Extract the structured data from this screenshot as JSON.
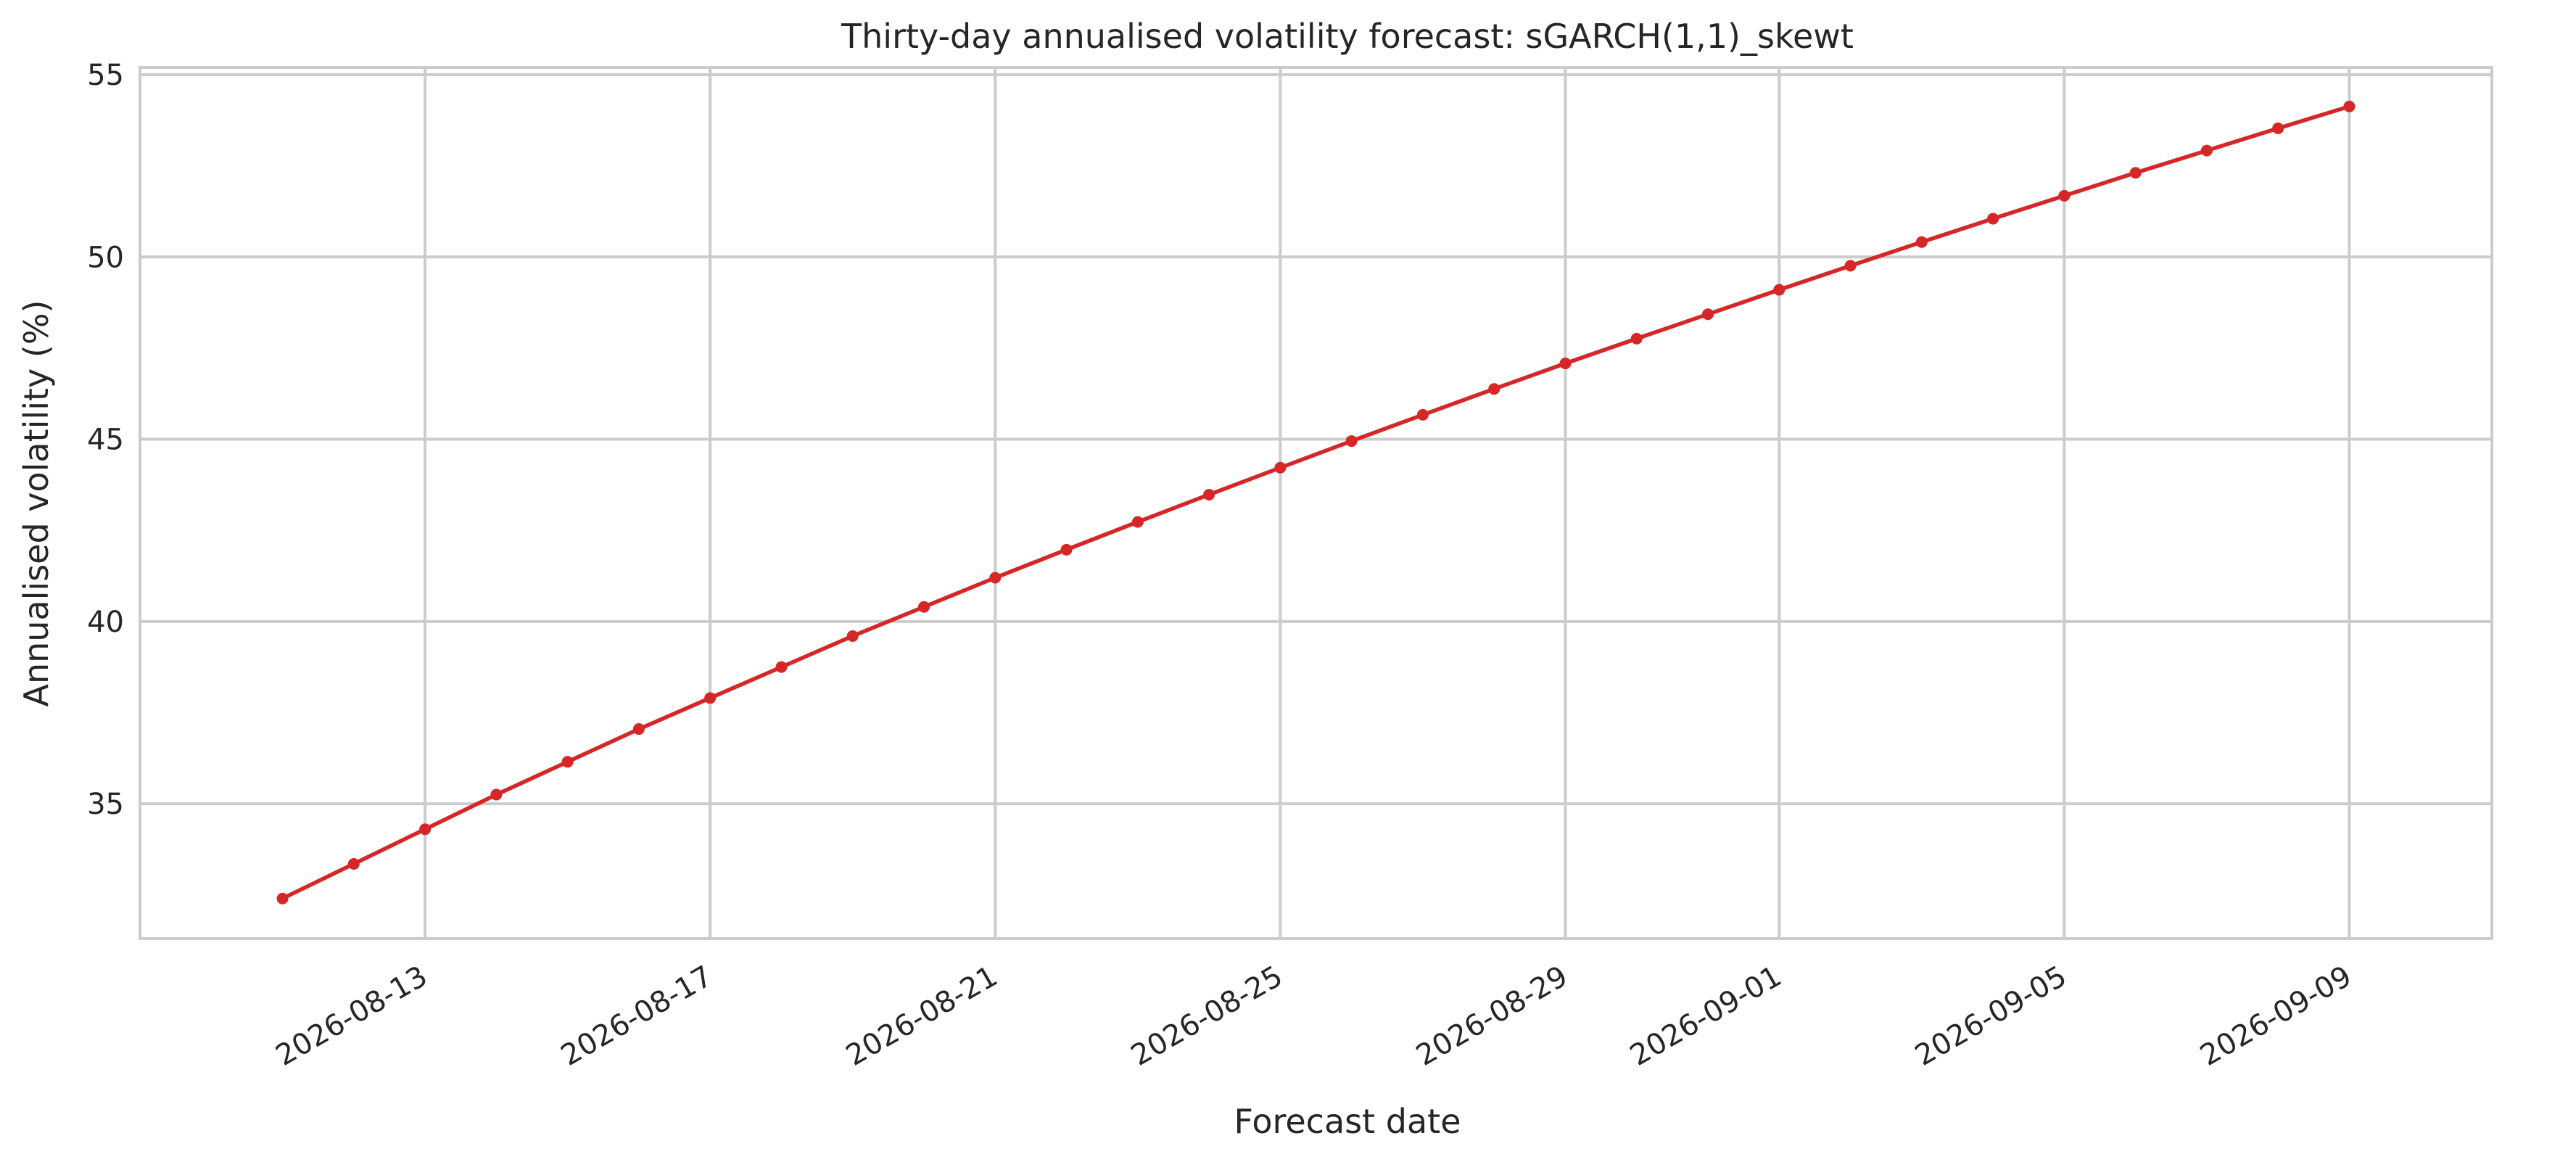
{
  "chart_data": {
    "type": "line",
    "title": "Thirty-day annualised volatility forecast: sGARCH(1,1)_skewt",
    "xlabel": "Forecast date",
    "ylabel": "Annualised volatility (%)",
    "x_range": [
      "2026-08-09",
      "2026-09-11"
    ],
    "ylim": [
      31.3,
      55.2
    ],
    "x_ticks": [
      "2026-08-13",
      "2026-08-17",
      "2026-08-21",
      "2026-08-25",
      "2026-08-29",
      "2026-09-01",
      "2026-09-05",
      "2026-09-09"
    ],
    "y_ticks": [
      35,
      40,
      45,
      50,
      55
    ],
    "grid": true,
    "legend": "none",
    "series": [
      {
        "color": "#d62728",
        "x": [
          "2026-08-11",
          "2026-08-12",
          "2026-08-13",
          "2026-08-14",
          "2026-08-15",
          "2026-08-16",
          "2026-08-17",
          "2026-08-18",
          "2026-08-19",
          "2026-08-20",
          "2026-08-21",
          "2026-08-22",
          "2026-08-23",
          "2026-08-24",
          "2026-08-25",
          "2026-08-26",
          "2026-08-27",
          "2026-08-28",
          "2026-08-29",
          "2026-08-30",
          "2026-08-31",
          "2026-09-01",
          "2026-09-02",
          "2026-09-03",
          "2026-09-04",
          "2026-09-05",
          "2026-09-06",
          "2026-09-07",
          "2026-09-08",
          "2026-09-09"
        ],
        "values": [
          32.4,
          33.35,
          34.3,
          35.25,
          36.15,
          37.05,
          37.9,
          38.75,
          39.6,
          40.4,
          41.2,
          41.97,
          42.73,
          43.48,
          44.22,
          44.95,
          45.67,
          46.38,
          47.08,
          47.76,
          48.43,
          49.1,
          49.76,
          50.41,
          51.05,
          51.68,
          52.31,
          52.92,
          53.53,
          54.13
        ]
      }
    ]
  }
}
